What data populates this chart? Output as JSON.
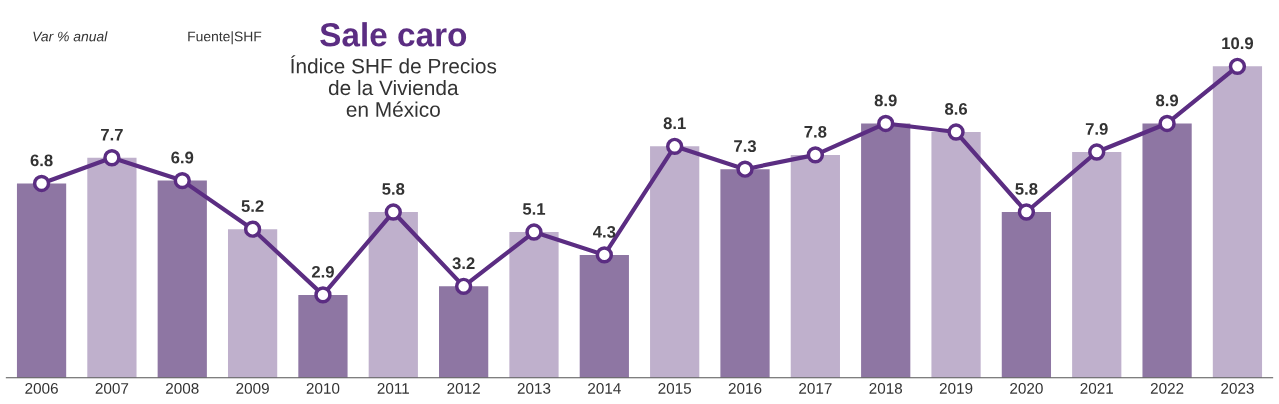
{
  "chart_data": {
    "type": "bar",
    "title": "Sale caro",
    "subtitle": "Índice SHF de Precios\nde la Vivienda\nen México",
    "annotations": [
      "Var % anual",
      "Fuente|SHF"
    ],
    "categories": [
      "2006",
      "2007",
      "2008",
      "2009",
      "2010",
      "2011",
      "2012",
      "2013",
      "2014",
      "2015",
      "2016",
      "2017",
      "2018",
      "2019",
      "2020",
      "2021",
      "2022",
      "2023"
    ],
    "series": [
      {
        "values": [
          6.8,
          7.7,
          6.9,
          5.2,
          2.9,
          5.8,
          3.2,
          5.1,
          4.3,
          8.1,
          7.3,
          7.8,
          8.9,
          8.6,
          5.8,
          7.9,
          8.9,
          10.9
        ],
        "value_labels": [
          "6.8",
          "7.7",
          "6.9",
          "5.2",
          "2.9",
          "5.8",
          "3.2",
          "5.1",
          "4.3",
          "8.1",
          "7.3",
          "7.8",
          "8.9",
          "8.6",
          "5.8",
          "7.9",
          "8.9",
          "10.9"
        ],
        "colors": [
          "#8e76a3",
          "#bfb0cc",
          "#8e76a3",
          "#bfb0cc",
          "#8e76a3",
          "#bfb0cc",
          "#8e76a3",
          "#bfb0cc",
          "#8e76a3",
          "#bfb0cc",
          "#8e76a3",
          "#bfb0cc",
          "#8e76a3",
          "#bfb0cc",
          "#8e76a3",
          "#bfb0cc",
          "#8e76a3",
          "#bfb0cc"
        ]
      },
      {
        "type": "line",
        "color": "#5b2d82",
        "values": [
          6.8,
          7.7,
          6.9,
          5.2,
          2.9,
          5.8,
          3.2,
          5.1,
          4.3,
          8.1,
          7.3,
          7.8,
          8.9,
          8.6,
          5.8,
          7.9,
          8.9,
          10.9
        ]
      }
    ],
    "grid": false,
    "legend": false,
    "marker": "circle",
    "line_style": "solid"
  }
}
